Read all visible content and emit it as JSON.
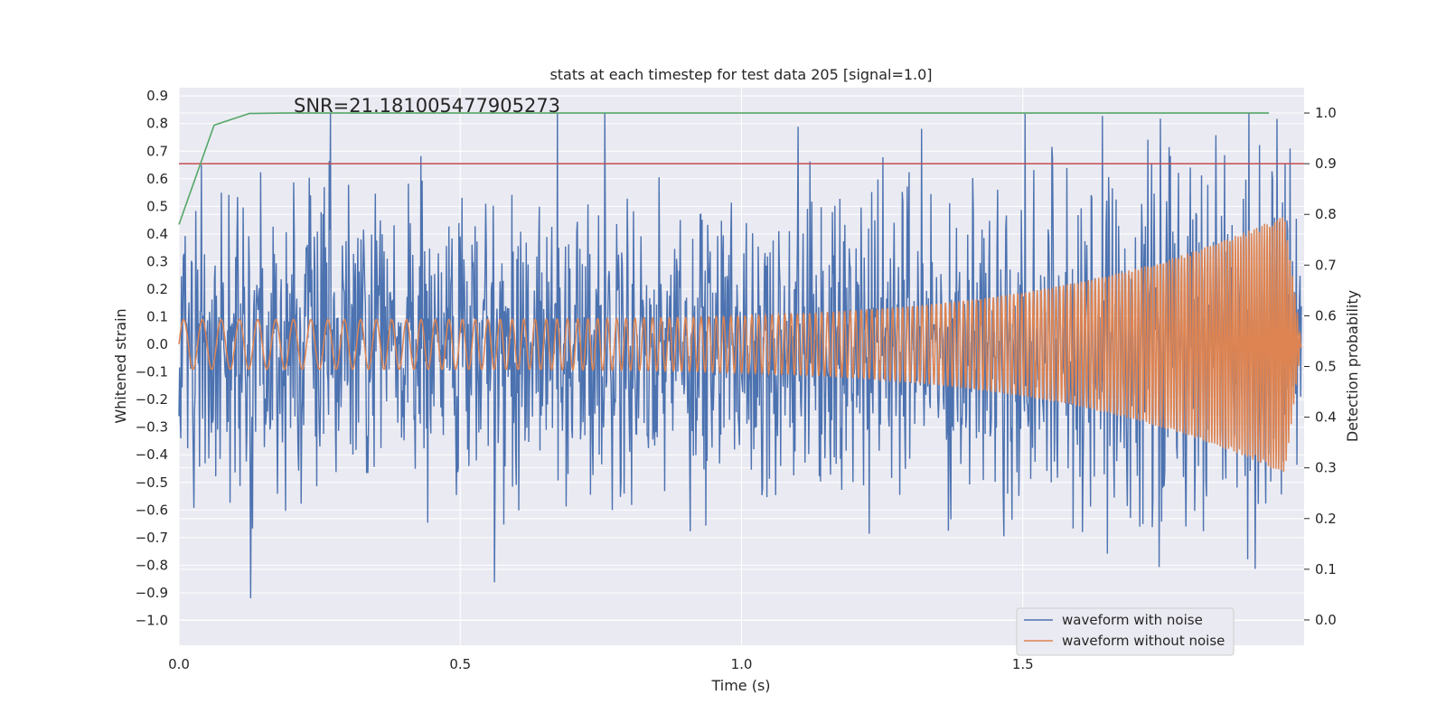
{
  "chart_data": {
    "type": "line",
    "title": "stats at each timestep for test data 205 [signal=1.0]",
    "xlabel": "Time (s)",
    "ylabel": "Whitened strain",
    "y2label": "Detection probability",
    "xlim": [
      0.0,
      2.0
    ],
    "ylim": [
      -1.09,
      0.93
    ],
    "y2lim": [
      -0.05,
      1.05
    ],
    "xticks": [
      0.0,
      0.5,
      1.0,
      1.5
    ],
    "xtick_labels": [
      "0.0",
      "0.5",
      "1.0",
      "1.5"
    ],
    "yticks": [
      0.9,
      0.8,
      0.7,
      0.6,
      0.5,
      0.4,
      0.3,
      0.2,
      0.1,
      0.0,
      -0.1,
      -0.2,
      -0.3,
      -0.4,
      -0.5,
      -0.6,
      -0.7,
      -0.8,
      -0.9,
      -1.0
    ],
    "ytick_labels": [
      "0.9",
      "0.8",
      "0.7",
      "0.6",
      "0.5",
      "0.4",
      "0.3",
      "0.2",
      "0.1",
      "0.0",
      "−0.1",
      "−0.2",
      "−0.3",
      "−0.4",
      "−0.5",
      "−0.6",
      "−0.7",
      "−0.8",
      "−0.9",
      "−1.0"
    ],
    "y2ticks": [
      1.0,
      0.9,
      0.8,
      0.7,
      0.6,
      0.5,
      0.4,
      0.3,
      0.2,
      0.1,
      0.0
    ],
    "y2tick_labels": [
      "1.0",
      "0.9",
      "0.8",
      "0.7",
      "0.6",
      "0.5",
      "0.4",
      "0.3",
      "0.2",
      "0.1",
      "0.0"
    ],
    "annotation": "SNR=21.181005477905273",
    "threshold": {
      "axis": "right",
      "value": 0.9,
      "color": "#c44e52"
    },
    "series": [
      {
        "name": "waveform with noise",
        "axis": "left",
        "color": "#4c72b0",
        "in_legend": true,
        "kind": "noisy_strain",
        "t_start": 0.0,
        "t_end": 1.995,
        "samples": 1800,
        "noise_std": 0.2,
        "min": -1.0,
        "max": 0.84
      },
      {
        "name": "waveform without noise",
        "axis": "left",
        "color": "#dd8452",
        "in_legend": true,
        "kind": "chirp",
        "t_start": 0.0,
        "t_end": 1.995,
        "f_start_hz": 30,
        "f_end_hz": 230,
        "amp_start": 0.09,
        "amp_end": 0.5
      },
      {
        "name": "detection probability",
        "axis": "right",
        "color": "#55a868",
        "in_legend": false,
        "x": [
          0.0,
          0.0625,
          0.125,
          0.1875,
          0.25,
          0.5,
          0.75,
          1.0,
          1.25,
          1.5,
          1.75,
          1.9375
        ],
        "values": [
          0.78,
          0.976,
          0.999,
          1.0,
          1.0,
          1.0,
          1.0,
          1.0,
          1.0,
          1.0,
          1.0,
          1.0
        ]
      }
    ]
  }
}
